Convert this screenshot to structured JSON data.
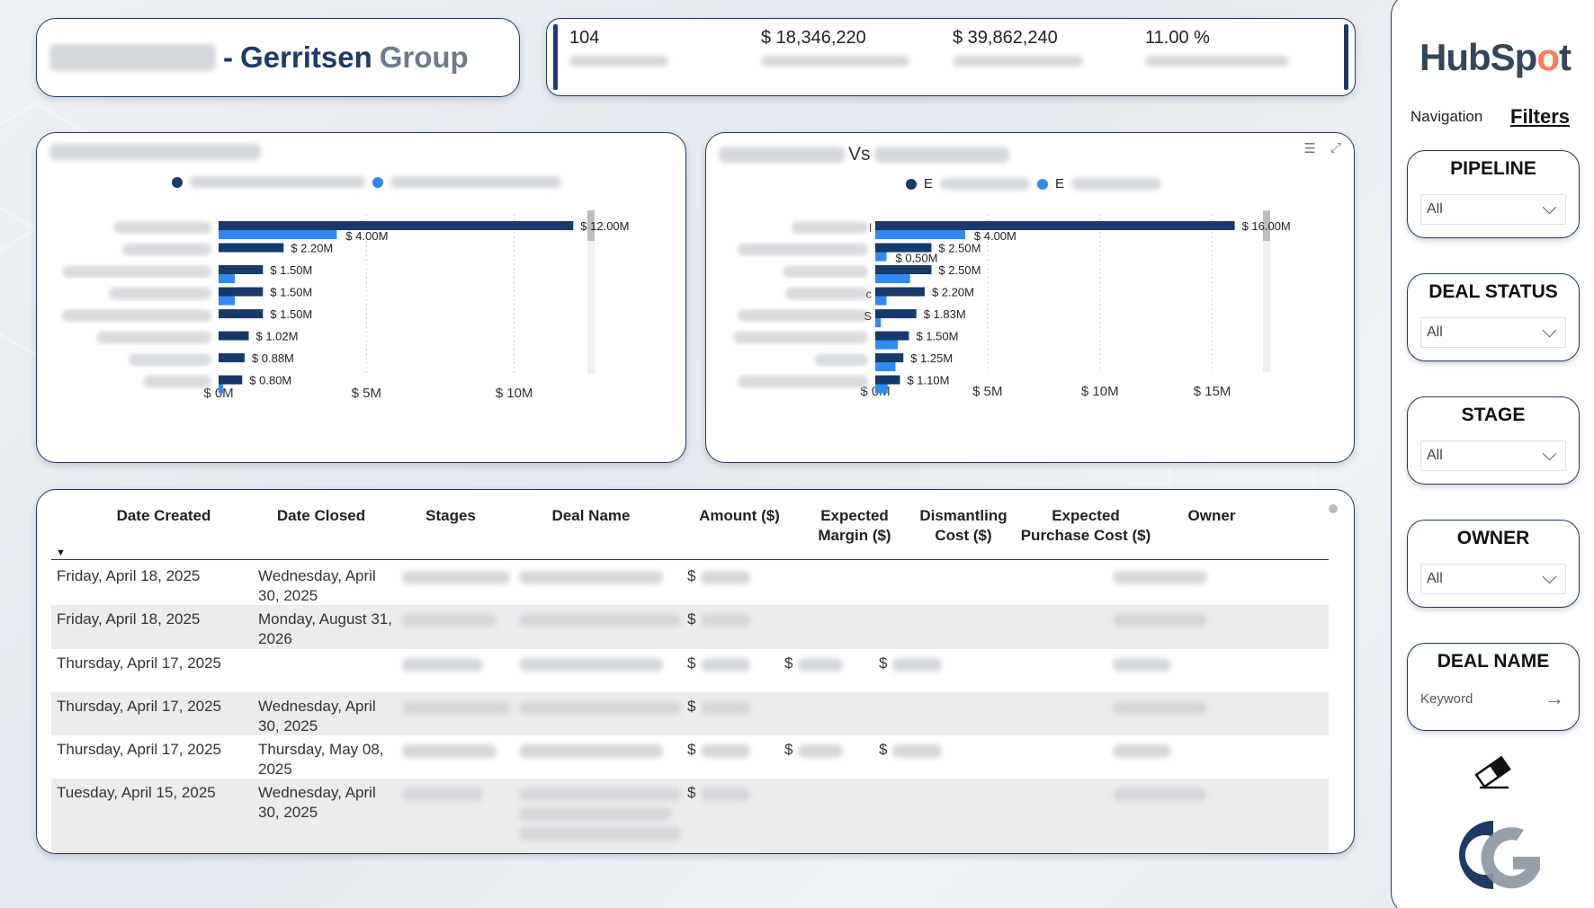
{
  "title": {
    "suffix": "Gerritsen",
    "group": "Group",
    "dash": "-"
  },
  "kpis": [
    {
      "value": "104"
    },
    {
      "value": "$ 18,346,220"
    },
    {
      "value": "$ 39,862,240"
    },
    {
      "value": "11.00 %"
    }
  ],
  "chart1": {
    "colors": {
      "series1": "#163a6b",
      "series2": "#2f8af5"
    },
    "chart_data": {
      "type": "bar",
      "orientation": "horizontal",
      "series": [
        {
          "values": [
            12.0,
            2.2,
            1.5,
            1.5,
            1.5,
            1.02,
            0.88,
            0.8
          ]
        },
        {
          "values": [
            4.0,
            0,
            0.55,
            0.55,
            0,
            0,
            0,
            0.15
          ]
        }
      ],
      "data_labels": [
        "$ 12.00M",
        "$ 4.00M",
        "$ 2.20M",
        "$ 1.50M",
        "$ 1.50M",
        "$ 1.50M",
        "$ 1.02M",
        "$ 0.88M",
        "$ 0.80M"
      ],
      "xlim": [
        0,
        14
      ],
      "xticks": [
        "$ 0M",
        "$ 5M",
        "$ 10M"
      ],
      "xtick_values": [
        0,
        5,
        10
      ],
      "grid": true,
      "legend": "top-center"
    }
  },
  "chart2": {
    "title_visible": "Vs",
    "colors": {
      "series1": "#163a6b",
      "series2": "#2f8af5"
    },
    "legend_fragments": [
      "E",
      "E"
    ],
    "cat_fragments": [
      "l",
      "",
      "",
      "c",
      "S",
      "",
      "",
      ""
    ],
    "chart_data": {
      "type": "bar",
      "orientation": "horizontal",
      "series": [
        {
          "values": [
            16.0,
            2.5,
            2.5,
            2.2,
            1.83,
            1.5,
            1.25,
            1.1
          ]
        },
        {
          "values": [
            4.0,
            0.5,
            1.55,
            0.5,
            0.25,
            1.0,
            0.9,
            0.55
          ]
        }
      ],
      "data_labels": [
        "$ 16.00M",
        "$ 4.00M",
        "$ 2.50M",
        "$ 0.50M",
        "$ 2.50M",
        "$ 2.20M",
        "$ 1.83M",
        "$ 1.50M",
        "$ 1.25M",
        "$ 1.10M"
      ],
      "xlim": [
        0,
        18.5
      ],
      "xticks": [
        "$ 0M",
        "$ 5M",
        "$ 10M",
        "$ 15M"
      ],
      "xtick_values": [
        0,
        5,
        10,
        15
      ],
      "grid": true,
      "legend": "top-center"
    }
  },
  "table": {
    "headers": [
      "Date Created",
      "Date Closed",
      "Stages",
      "Deal Name",
      "Amount ($)",
      "Expected Margin ($)",
      "Dismantling Cost ($)",
      "Expected Purchase Cost ($)",
      "Owner"
    ],
    "rows": [
      {
        "created": "Friday, April 18, 2025",
        "closed": "Wednesday, April 30, 2025",
        "amount": "$",
        "margin": "",
        "dismantling": ""
      },
      {
        "created": "Friday, April 18, 2025",
        "closed": "Monday, August 31, 2026",
        "amount": "$",
        "margin": "",
        "dismantling": ""
      },
      {
        "created": "Thursday, April 17, 2025",
        "closed": "",
        "amount": "$",
        "margin": "$",
        "dismantling": "$"
      },
      {
        "created": "Thursday, April 17, 2025",
        "closed": "Wednesday, April 30, 2025",
        "amount": "$",
        "margin": "",
        "dismantling": ""
      },
      {
        "created": "Thursday, April 17, 2025",
        "closed": "Thursday, May 08, 2025",
        "amount": "$",
        "margin": "$",
        "dismantling": "$"
      },
      {
        "created": "Tuesday, April 15, 2025",
        "closed": "Wednesday, April 30, 2025",
        "amount": "$",
        "margin": "",
        "dismantling": ""
      }
    ]
  },
  "side": {
    "logo_a": "HubSp",
    "logo_o": "o",
    "logo_b": "t",
    "nav_label": "Navigation",
    "filters_label": "Filters",
    "filters": [
      {
        "title": "PIPELINE",
        "value": "All"
      },
      {
        "title": "DEAL STATUS",
        "value": "All"
      },
      {
        "title": "STAGE",
        "value": "All"
      },
      {
        "title": "OWNER",
        "value": "All"
      }
    ],
    "deal_name": {
      "title": "DEAL NAME",
      "placeholder": "Keyword"
    },
    "icons": {
      "eraser": "eraser-icon",
      "filter": "filter-icon",
      "focus": "focus-mode-icon",
      "sort": "sort-descending-icon",
      "arrow": "arrow-right-icon",
      "chevron": "chevron-down-icon"
    }
  }
}
